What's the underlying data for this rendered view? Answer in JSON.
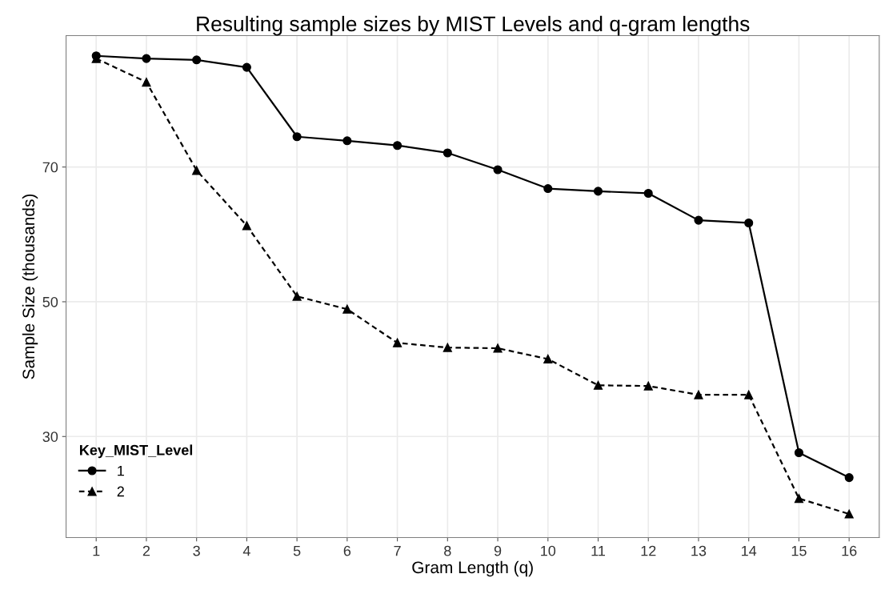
{
  "chart_data": {
    "type": "line",
    "title": "Resulting sample sizes by MIST Levels and q-gram lengths",
    "xlabel": "Gram Length (q)",
    "ylabel": "Sample Size (thousands)",
    "legend_title": "Key_MIST_Level",
    "x": [
      1,
      2,
      3,
      4,
      5,
      6,
      7,
      8,
      9,
      10,
      11,
      12,
      13,
      14,
      15,
      16
    ],
    "series": [
      {
        "name": "1",
        "color": "#000000",
        "marker": "circle",
        "line_style": "solid",
        "values": [
          86.5,
          86.1,
          85.9,
          84.8,
          74.5,
          73.9,
          73.2,
          72.1,
          69.6,
          66.8,
          66.4,
          66.1,
          62.1,
          61.7,
          27.6,
          23.9
        ]
      },
      {
        "name": "2",
        "color": "#000000",
        "marker": "triangle",
        "line_style": "dashed",
        "values": [
          86.1,
          82.6,
          69.5,
          61.3,
          50.8,
          48.9,
          43.9,
          43.2,
          43.1,
          41.5,
          37.6,
          37.5,
          36.2,
          36.2,
          20.8,
          18.5
        ]
      }
    ],
    "xlim": [
      0.4,
      16.6
    ],
    "xticks": [
      1,
      2,
      3,
      4,
      5,
      6,
      7,
      8,
      9,
      10,
      11,
      12,
      13,
      14,
      15,
      16
    ],
    "ylim": [
      15.0,
      89.5
    ],
    "yticks": [
      30,
      50,
      70
    ],
    "grid": true,
    "legend": "bottom left"
  }
}
